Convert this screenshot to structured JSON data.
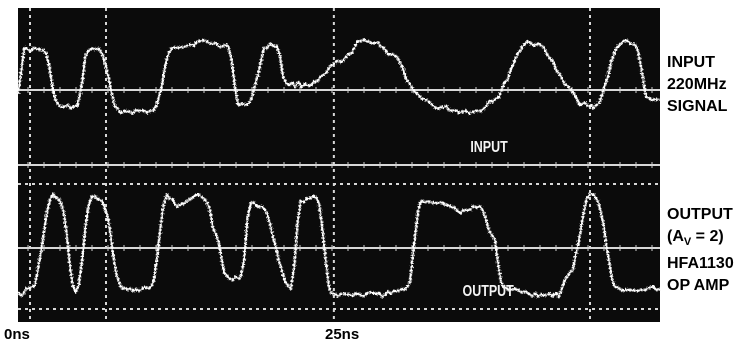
{
  "right_labels": {
    "input": [
      "INPUT",
      "220MHz",
      "SIGNAL"
    ],
    "output_line1": "OUTPUT",
    "output_av_open": "(A",
    "output_av_sub": "V",
    "output_av_close": " = 2)",
    "output_line3": "HFA1130",
    "output_line4": "OP AMP"
  },
  "chart_data": [
    {
      "type": "line",
      "title": "",
      "xlabel": "",
      "ylabel": "",
      "x_ticks": [
        {
          "value": 0,
          "label": "0ns"
        },
        {
          "value": 25,
          "label": "25ns"
        }
      ],
      "xlim": [
        0,
        51.3
      ],
      "grid": true,
      "series": [
        {
          "name": "INPUT",
          "style": "noisy white trace, dark oscilloscope screen",
          "x": [
            0.0,
            0.5,
            2.0,
            3.3,
            4.7,
            5.6,
            6.5,
            8.0,
            10.8,
            12.4,
            13.1,
            14.8,
            16.8,
            17.6,
            18.4,
            19.9,
            20.7,
            21.4,
            23.4,
            25.9,
            27.4,
            28.5,
            29.8,
            32.0,
            33.5,
            35.5,
            36.8,
            37.9,
            40.8,
            41.6,
            44.2,
            44.9,
            46.0,
            48.3,
            49.3,
            50.4,
            51.3
          ],
          "values": [
            0.3,
            0.85,
            0.85,
            0.1,
            0.1,
            0.85,
            0.85,
            0.05,
            0.05,
            0.9,
            0.9,
            0.95,
            0.9,
            0.15,
            0.15,
            0.9,
            0.9,
            0.4,
            0.4,
            0.7,
            0.95,
            0.95,
            0.8,
            0.25,
            0.1,
            0.05,
            0.05,
            0.2,
            0.95,
            0.9,
            0.35,
            0.15,
            0.1,
            0.95,
            0.9,
            0.2,
            0.2
          ]
        },
        {
          "name": "OUTPUT",
          "style": "noisy white trace, dark oscilloscope screen",
          "x": [
            0.0,
            1.1,
            2.8,
            3.4,
            4.6,
            5.9,
            6.7,
            8.3,
            10.6,
            11.9,
            12.8,
            14.3,
            15.1,
            15.8,
            16.7,
            17.8,
            18.6,
            19.4,
            21.8,
            22.6,
            23.8,
            25.1,
            27.0,
            29.3,
            31.1,
            32.2,
            33.2,
            33.9,
            35.4,
            36.9,
            37.9,
            38.8,
            41.8,
            43.2,
            44.1,
            45.7,
            46.1,
            47.9,
            49.0,
            49.8,
            51.3
          ],
          "values": [
            0.05,
            0.1,
            0.95,
            0.9,
            0.05,
            0.95,
            0.9,
            0.1,
            0.1,
            0.95,
            0.85,
            0.95,
            0.9,
            0.6,
            0.2,
            0.2,
            0.9,
            0.85,
            0.1,
            0.9,
            0.95,
            0.05,
            0.05,
            0.05,
            0.1,
            0.9,
            0.9,
            0.88,
            0.8,
            0.85,
            0.6,
            0.1,
            0.05,
            0.05,
            0.25,
            0.95,
            0.95,
            0.1,
            0.1,
            0.1,
            0.1
          ]
        }
      ]
    }
  ]
}
